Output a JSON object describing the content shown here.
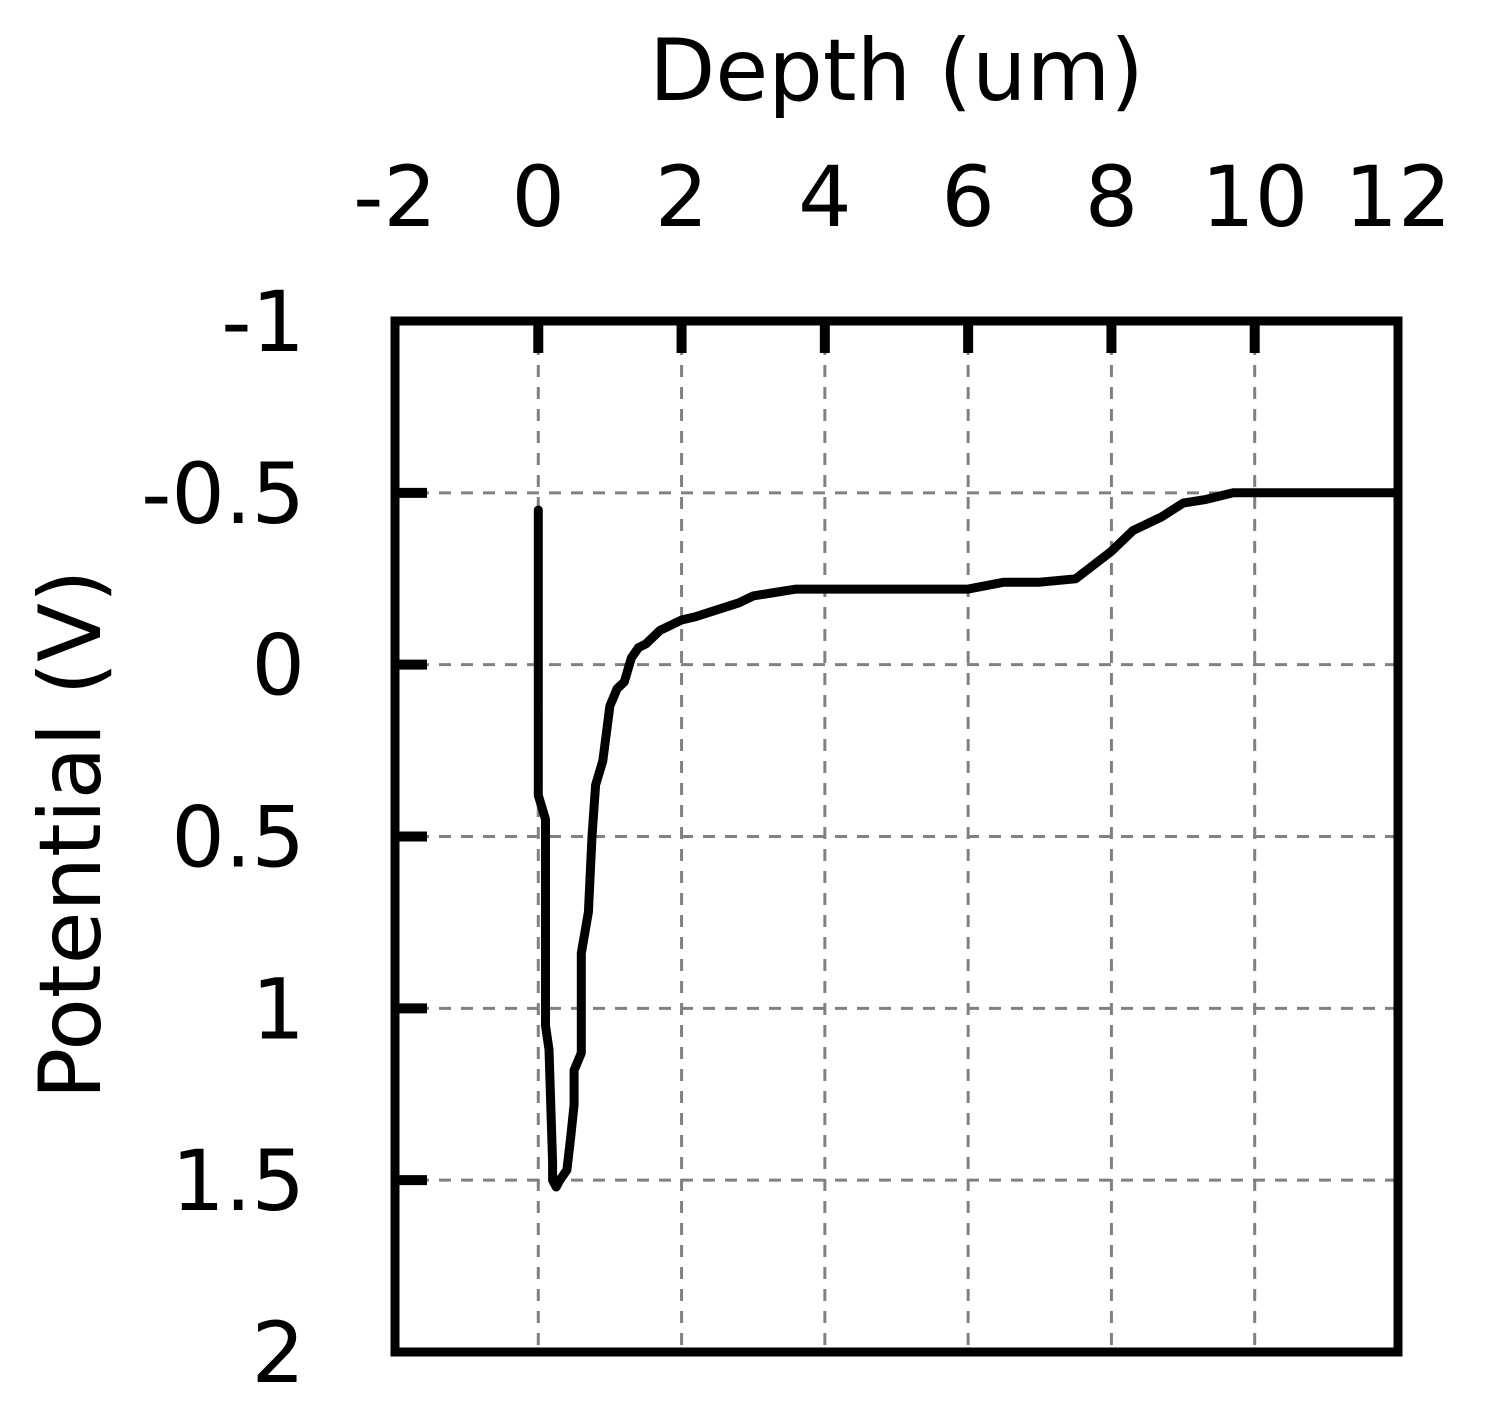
{
  "chart_data": {
    "type": "line",
    "title": "",
    "xlabel": "Depth (um)",
    "ylabel": "Potential (V)",
    "x_axis_position": "top",
    "y_axis_inverted": true,
    "xlim": [
      -2,
      12
    ],
    "ylim": [
      -1,
      2
    ],
    "xticks": [
      -2,
      0,
      2,
      4,
      6,
      8,
      10,
      12
    ],
    "xtick_labels": [
      "-2",
      "0",
      "2",
      "4",
      "6",
      "8",
      "10",
      "12"
    ],
    "yticks": [
      -1,
      -0.5,
      0,
      0.5,
      1,
      1.5,
      2
    ],
    "ytick_labels": [
      "-1",
      "-0.5",
      "0",
      "0.5",
      "1",
      "1.5",
      "2"
    ],
    "grid": true,
    "legend": "none",
    "colors": {
      "line": "#000000",
      "grid": "#808080",
      "frame": "#000000"
    },
    "series": [
      {
        "x": [
          0.0,
          0.0,
          0.1,
          0.1,
          0.15,
          0.2,
          0.2,
          0.25,
          0.3,
          0.4,
          0.45,
          0.5,
          0.5,
          0.6,
          0.6,
          0.7,
          0.75,
          0.8,
          0.9,
          1.0,
          1.1,
          1.2,
          1.3,
          1.4,
          1.5,
          1.6,
          1.7,
          1.8,
          2.0,
          2.2,
          2.5,
          2.8,
          3.0,
          3.3,
          3.6,
          4.0,
          4.5,
          5.0,
          6.0,
          6.5,
          7.0,
          7.5,
          8.0,
          8.3,
          8.7,
          9.0,
          9.3,
          9.7,
          12.0
        ],
        "y": [
          -0.45,
          0.38,
          0.45,
          1.05,
          1.12,
          1.45,
          1.5,
          1.52,
          1.5,
          1.47,
          1.38,
          1.28,
          1.18,
          1.13,
          0.84,
          0.72,
          0.5,
          0.35,
          0.28,
          0.12,
          0.07,
          0.05,
          -0.02,
          -0.05,
          -0.06,
          -0.08,
          -0.1,
          -0.11,
          -0.13,
          -0.14,
          -0.16,
          -0.18,
          -0.2,
          -0.21,
          -0.22,
          -0.22,
          -0.22,
          -0.22,
          -0.22,
          -0.24,
          -0.24,
          -0.25,
          -0.33,
          -0.39,
          -0.43,
          -0.47,
          -0.48,
          -0.5,
          -0.5
        ]
      }
    ]
  }
}
